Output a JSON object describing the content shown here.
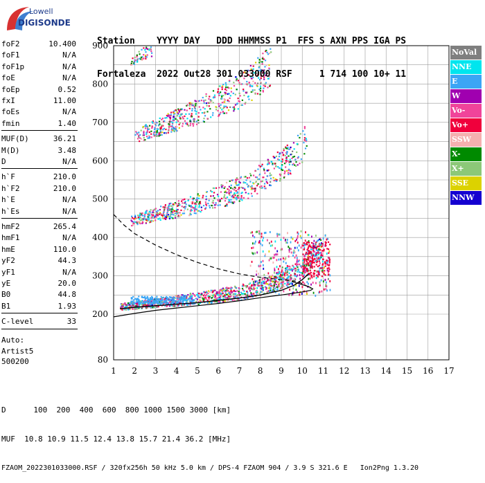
{
  "logo": {
    "line1": "Lowell",
    "line2": "DIGISONDE"
  },
  "header": {
    "row1": "Station    YYYY DAY   DDD HHMMSS P1  FFS S AXN PPS IGA PS",
    "row2": "Fortaleza  2022 Out28 301 033000 RSF     1 714 100 10+ 11"
  },
  "params": {
    "group1": [
      {
        "label": "foF2",
        "value": "10.400"
      },
      {
        "label": "foF1",
        "value": "N/A"
      },
      {
        "label": "foF1p",
        "value": "N/A"
      },
      {
        "label": "foE",
        "value": "N/A"
      },
      {
        "label": "foEp",
        "value": "0.52"
      },
      {
        "label": "fxI",
        "value": "11.00"
      },
      {
        "label": "foEs",
        "value": "N/A"
      },
      {
        "label": "fmin",
        "value": "1.40"
      }
    ],
    "group2": [
      {
        "label": "MUF(D)",
        "value": "36.21"
      },
      {
        "label": "M(D)",
        "value": "3.48"
      },
      {
        "label": "D",
        "value": "N/A"
      }
    ],
    "group3": [
      {
        "label": "h`F",
        "value": "210.0"
      },
      {
        "label": "h`F2",
        "value": "210.0"
      },
      {
        "label": "h`E",
        "value": "N/A"
      },
      {
        "label": "h`Es",
        "value": "N/A"
      }
    ],
    "group4": [
      {
        "label": "hmF2",
        "value": "265.4"
      },
      {
        "label": "hmF1",
        "value": "N/A"
      },
      {
        "label": "hmE",
        "value": "110.0"
      },
      {
        "label": "yF2",
        "value": "44.3"
      },
      {
        "label": "yF1",
        "value": "N/A"
      },
      {
        "label": "yE",
        "value": "20.0"
      },
      {
        "label": "B0",
        "value": "44.8"
      },
      {
        "label": "B1",
        "value": "1.93"
      }
    ],
    "group5": [
      {
        "label": "C-level",
        "value": "33"
      }
    ]
  },
  "auto": {
    "line1": "Auto:",
    "line2": "Artist5",
    "line3": "500200"
  },
  "legend": [
    {
      "label": "NoVal",
      "color": "#7f7f7f"
    },
    {
      "label": "NNE",
      "color": "#00e5ee"
    },
    {
      "label": "E",
      "color": "#3ba5f5"
    },
    {
      "label": "W",
      "color": "#a000b0"
    },
    {
      "label": "Vo-",
      "color": "#f0449a"
    },
    {
      "label": "Vo+",
      "color": "#f0003c"
    },
    {
      "label": "SSW",
      "color": "#f5b0b0"
    },
    {
      "label": "X-",
      "color": "#008a00"
    },
    {
      "label": "X+",
      "color": "#8cc878"
    },
    {
      "label": "SSE",
      "color": "#dcd200"
    },
    {
      "label": "NNW",
      "color": "#1400d0"
    }
  ],
  "footer": {
    "line1": "D      100  200  400  600  800 1000 1500 3000 [km]",
    "line2": "MUF  10.8 10.9 11.5 12.4 13.8 15.7 21.4 36.2 [MHz]",
    "line3": "FZAOM_2022301033000.RSF / 320fx256h 50 kHz 5.0 km / DPS-4 FZAOM 904 / 3.9 S 321.6 E   Ion2Png 1.3.20"
  },
  "chart_data": {
    "type": "scatter",
    "xlim": [
      1,
      17
    ],
    "ylim": [
      80,
      900
    ],
    "x_ticks": [
      1,
      2,
      3,
      4,
      5,
      6,
      7,
      8,
      9,
      10,
      11,
      12,
      13,
      14,
      15,
      16,
      17
    ],
    "y_ticks": [
      80,
      200,
      300,
      400,
      500,
      600,
      700,
      800,
      900
    ],
    "grid": true,
    "traces": [
      {
        "series": "O-trace (1st hop)",
        "points": [
          [
            1.3,
            218
          ],
          [
            2,
            222
          ],
          [
            3,
            228
          ],
          [
            4,
            233
          ],
          [
            5,
            238
          ],
          [
            6,
            244
          ],
          [
            7,
            252
          ],
          [
            7.5,
            258
          ],
          [
            8,
            266
          ],
          [
            8.5,
            275
          ],
          [
            9,
            285
          ],
          [
            9.5,
            300
          ],
          [
            10,
            318
          ],
          [
            10.3,
            335
          ],
          [
            10.6,
            355
          ],
          [
            10.9,
            370
          ]
        ]
      },
      {
        "series": "2nd hop",
        "points": [
          [
            1.8,
            440
          ],
          [
            2.5,
            450
          ],
          [
            3.5,
            462
          ],
          [
            4.5,
            475
          ],
          [
            5.5,
            490
          ],
          [
            6.5,
            508
          ],
          [
            7.5,
            530
          ],
          [
            8.5,
            562
          ],
          [
            9.5,
            600
          ],
          [
            10.2,
            640
          ]
        ]
      },
      {
        "series": "3rd hop",
        "points": [
          [
            2,
            660
          ],
          [
            3,
            680
          ],
          [
            4,
            700
          ],
          [
            5,
            720
          ],
          [
            6,
            745
          ],
          [
            7,
            770
          ],
          [
            8,
            810
          ],
          [
            8.5,
            840
          ]
        ]
      },
      {
        "series": "4th hop",
        "points": [
          [
            1.8,
            855
          ],
          [
            2.2,
            870
          ],
          [
            2.8,
            890
          ]
        ]
      }
    ],
    "profile_solid": [
      [
        1,
        193
      ],
      [
        2,
        202
      ],
      [
        3,
        210
      ],
      [
        4,
        216
      ],
      [
        5,
        222
      ],
      [
        6,
        228
      ],
      [
        7,
        235
      ],
      [
        8,
        243
      ],
      [
        9,
        250
      ],
      [
        10,
        258
      ],
      [
        10.4,
        262
      ],
      [
        10.5,
        266
      ],
      [
        10.3,
        272
      ],
      [
        9.5,
        285
      ]
    ],
    "profile_dashed": [
      [
        1,
        460
      ],
      [
        1.5,
        432
      ],
      [
        2,
        410
      ],
      [
        3,
        380
      ],
      [
        4,
        355
      ],
      [
        5,
        335
      ],
      [
        6,
        318
      ],
      [
        7,
        305
      ],
      [
        8,
        296
      ],
      [
        9,
        290
      ],
      [
        9.8,
        285
      ],
      [
        10.4,
        268
      ]
    ],
    "muf_curve": [
      [
        1.3,
        214
      ],
      [
        2,
        218
      ],
      [
        3,
        222
      ],
      [
        4,
        226
      ],
      [
        5,
        230
      ],
      [
        6,
        236
      ],
      [
        7,
        242
      ],
      [
        8,
        250
      ],
      [
        9,
        262
      ],
      [
        9.6,
        275
      ],
      [
        10,
        290
      ],
      [
        10.3,
        305
      ]
    ]
  }
}
